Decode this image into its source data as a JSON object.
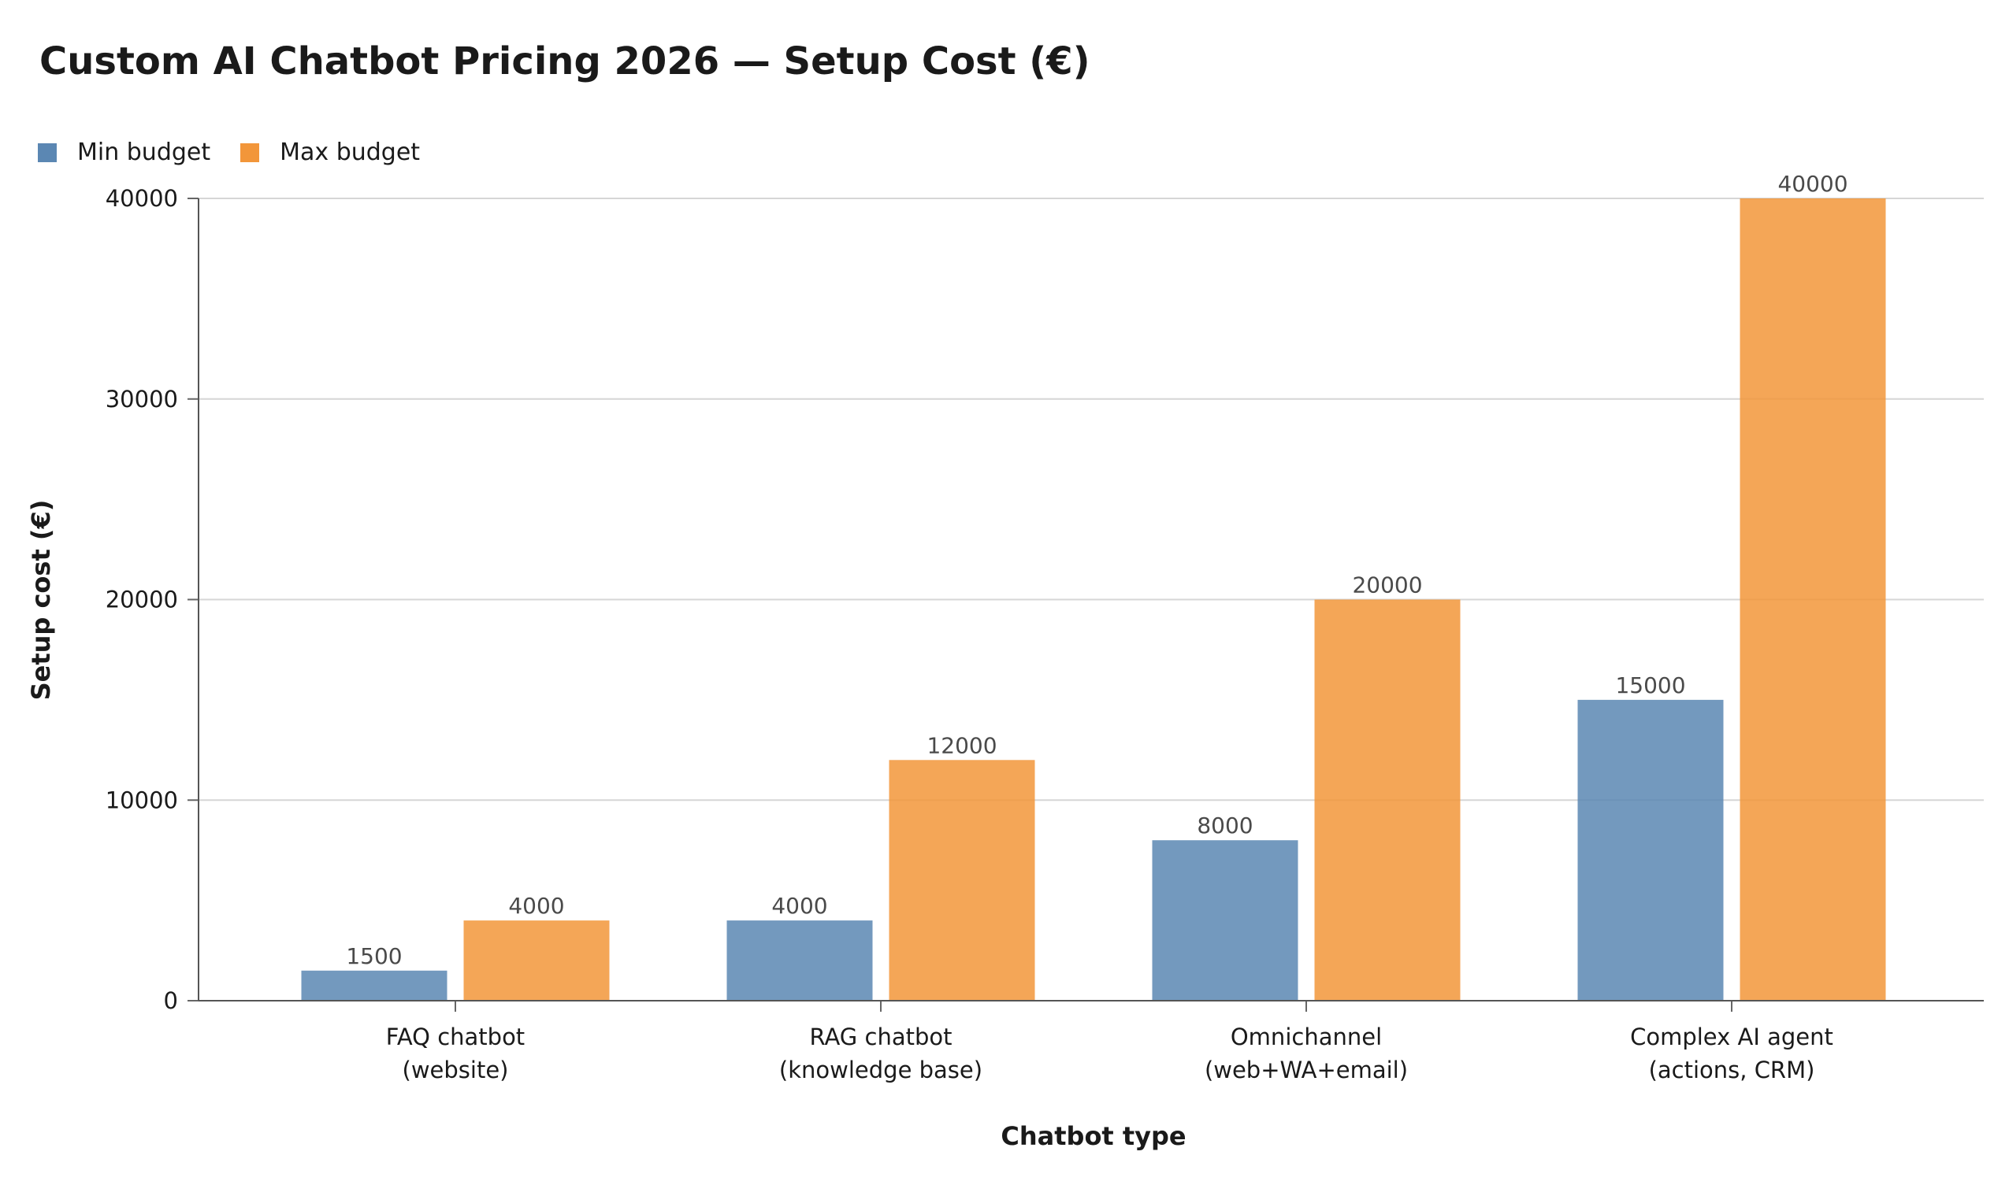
{
  "chart_data": {
    "type": "bar",
    "title": "Custom AI Chatbot Pricing 2026 — Setup Cost (€)",
    "xlabel": "Chatbot type",
    "ylabel": "Setup cost (€)",
    "categories": [
      [
        "FAQ chatbot",
        "(website)"
      ],
      [
        "RAG chatbot",
        "(knowledge base)"
      ],
      [
        "Omnichannel",
        "(web+WA+email)"
      ],
      [
        "Complex AI agent",
        "(actions, CRM)"
      ]
    ],
    "series": [
      {
        "name": "Min budget",
        "color": "#5b87b3",
        "values": [
          1500,
          4000,
          8000,
          15000
        ]
      },
      {
        "name": "Max budget",
        "color": "#f2963a",
        "values": [
          4000,
          12000,
          20000,
          40000
        ]
      }
    ],
    "ylim": [
      0,
      40000
    ],
    "yticks": [
      0,
      10000,
      20000,
      30000,
      40000
    ],
    "grid": true,
    "legend_position": "top-left"
  }
}
